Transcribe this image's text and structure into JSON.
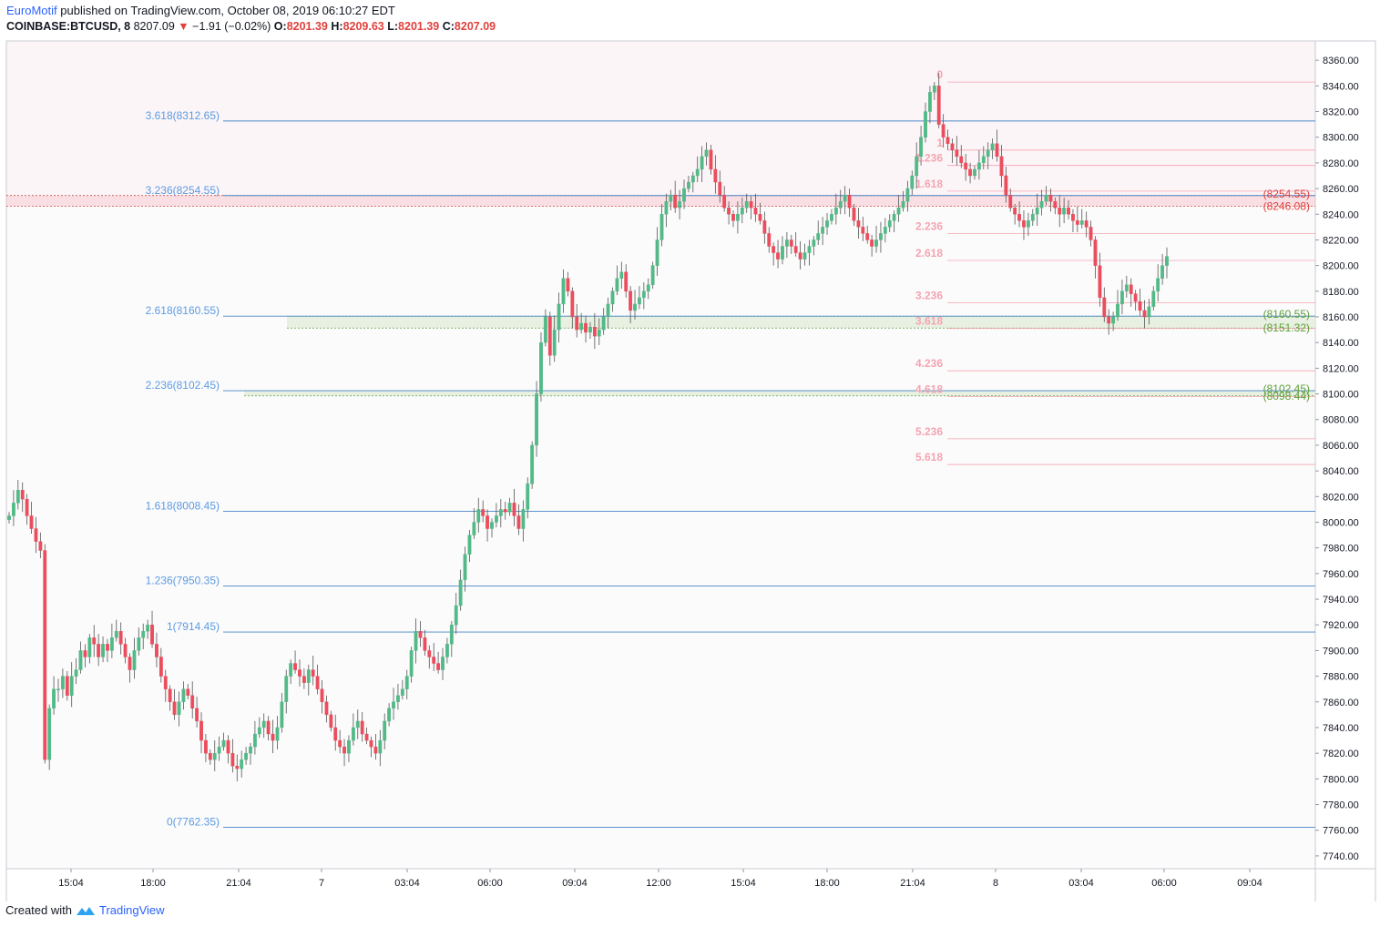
{
  "header": {
    "author": "EuroMotif",
    "published_text": "published on TradingView.com, October 08, 2019 06:10:27 EDT",
    "symbol": "COINBASE:BTCUSD, 8",
    "last_price": "8207.09",
    "change_arrow": "▼",
    "change": "−1.91 (−0.02%)",
    "open_label": "O:",
    "open": "8201.39",
    "high_label": "H:",
    "high": "8209.63",
    "low_label": "L:",
    "low": "8201.39",
    "close_label": "C:",
    "close": "8207.09"
  },
  "footer": {
    "created_with": "Created with",
    "brand": "TradingView",
    "logo_icon": "tradingview-logo-icon"
  },
  "colors": {
    "up": "#53b987",
    "down": "#eb4d5c",
    "fib_blue": "#4a86c8",
    "fib_label_blue": "#5d9be0",
    "fib_pink": "#f5a4b0",
    "zone_red": "#f7c8d0",
    "zone_green": "#e4eedb",
    "label_red": "#e0413c",
    "label_green": "#5e9e38"
  },
  "chart_data": {
    "type": "candlestick",
    "symbol": "COINBASE:BTCUSD",
    "timeframe": "8",
    "ylim": [
      7730,
      8375
    ],
    "y_ticks": [
      "8360.00",
      "8340.00",
      "8320.00",
      "8300.00",
      "8280.00",
      "8260.00",
      "8240.00",
      "8220.00",
      "8200.00",
      "8180.00",
      "8160.00",
      "8140.00",
      "8120.00",
      "8100.00",
      "8080.00",
      "8060.00",
      "8040.00",
      "8020.00",
      "8000.00",
      "7980.00",
      "7960.00",
      "7940.00",
      "7920.00",
      "7900.00",
      "7880.00",
      "7860.00",
      "7840.00",
      "7820.00",
      "7800.00",
      "7780.00",
      "7760.00",
      "7740.00"
    ],
    "x_ticks": [
      "15:04",
      "18:00",
      "21:04",
      "7",
      "03:04",
      "06:00",
      "09:04",
      "12:00",
      "15:04",
      "18:00",
      "21:04",
      "8",
      "03:04",
      "06:00",
      "09:04"
    ],
    "fib_extension_blue": [
      {
        "label": "3.618(8312.65)",
        "price": 8312.65
      },
      {
        "label": "3.236(8254.55)",
        "price": 8254.55
      },
      {
        "label": "2.618(8160.55)",
        "price": 8160.55
      },
      {
        "label": "2.236(8102.45)",
        "price": 8102.45
      },
      {
        "label": "1.618(8008.45)",
        "price": 8008.45
      },
      {
        "label": "1.236(7950.35)",
        "price": 7950.35
      },
      {
        "label": "1(7914.45)",
        "price": 7914.45
      },
      {
        "label": "0(7762.35)",
        "price": 7762.35
      }
    ],
    "fib_extension_pink": [
      {
        "label": "0",
        "price": 8343
      },
      {
        "label": "1",
        "price": 8290
      },
      {
        "label": "1.236",
        "price": 8278
      },
      {
        "label": "1.618",
        "price": 8258
      },
      {
        "label": "2.236",
        "price": 8225
      },
      {
        "label": "2.618",
        "price": 8204
      },
      {
        "label": "3.236",
        "price": 8171
      },
      {
        "label": "3.618",
        "price": 8151
      },
      {
        "label": "4.236",
        "price": 8118
      },
      {
        "label": "4.618",
        "price": 8098
      },
      {
        "label": "5.236",
        "price": 8065
      },
      {
        "label": "5.618",
        "price": 8045
      }
    ],
    "zones": [
      {
        "top_label": "(8254.55)",
        "bottom_label": "(8246.08)",
        "top": 8254.55,
        "bottom": 8246.08,
        "color": "red"
      },
      {
        "top_label": "(8160.55)",
        "bottom_label": "(8151.32)",
        "top": 8160.55,
        "bottom": 8151.32,
        "color": "green"
      },
      {
        "top_label": "(8102.45)",
        "bottom_label": "(8098.44)",
        "top": 8102.45,
        "bottom": 8098.44,
        "color": "green"
      }
    ],
    "close_series": [
      8005,
      8015,
      8025,
      8018,
      8005,
      7995,
      7985,
      7978,
      7815,
      7855,
      7870,
      7870,
      7880,
      7865,
      7880,
      7885,
      7900,
      7895,
      7910,
      7905,
      7895,
      7905,
      7900,
      7910,
      7915,
      7905,
      7895,
      7885,
      7900,
      7910,
      7915,
      7920,
      7905,
      7895,
      7880,
      7870,
      7860,
      7850,
      7860,
      7870,
      7865,
      7855,
      7845,
      7830,
      7820,
      7815,
      7820,
      7825,
      7830,
      7820,
      7810,
      7808,
      7815,
      7820,
      7825,
      7835,
      7840,
      7845,
      7835,
      7830,
      7840,
      7860,
      7880,
      7890,
      7885,
      7880,
      7875,
      7885,
      7880,
      7870,
      7860,
      7850,
      7840,
      7830,
      7825,
      7820,
      7830,
      7840,
      7845,
      7835,
      7830,
      7825,
      7820,
      7830,
      7845,
      7855,
      7860,
      7865,
      7870,
      7880,
      7900,
      7915,
      7910,
      7900,
      7895,
      7890,
      7885,
      7895,
      7905,
      7920,
      7935,
      7955,
      7975,
      7990,
      8000,
      8010,
      8005,
      7995,
      8000,
      8005,
      8010,
      8008,
      8015,
      8005,
      7995,
      8010,
      8030,
      8060,
      8100,
      8140,
      8160,
      8130,
      8150,
      8170,
      8190,
      8180,
      8160,
      8150,
      8155,
      8148,
      8152,
      8145,
      8150,
      8160,
      8170,
      8180,
      8190,
      8195,
      8180,
      8165,
      8170,
      8175,
      8180,
      8185,
      8200,
      8220,
      8240,
      8250,
      8255,
      8245,
      8250,
      8260,
      8265,
      8270,
      8275,
      8285,
      8290,
      8275,
      8265,
      8255,
      8245,
      8240,
      8235,
      8240,
      8245,
      8250,
      8245,
      8240,
      8235,
      8225,
      8215,
      8210,
      8205,
      8215,
      8220,
      8215,
      8210,
      8205,
      8210,
      8215,
      8220,
      8225,
      8230,
      8235,
      8240,
      8245,
      8250,
      8255,
      8245,
      8235,
      8230,
      8225,
      8220,
      8215,
      8220,
      8225,
      8230,
      8235,
      8240,
      8245,
      8250,
      8260,
      8270,
      8285,
      8300,
      8320,
      8335,
      8340,
      8310,
      8300,
      8295,
      8290,
      8285,
      8280,
      8275,
      8270,
      8275,
      8280,
      8285,
      8290,
      8295,
      8285,
      8270,
      8255,
      8245,
      8240,
      8235,
      8230,
      8235,
      8240,
      8245,
      8250,
      8255,
      8250,
      8245,
      8240,
      8245,
      8240,
      8235,
      8232,
      8235,
      8230,
      8220,
      8200,
      8175,
      8160,
      8155,
      8160,
      8170,
      8180,
      8185,
      8178,
      8172,
      8165,
      8160,
      8168,
      8180,
      8190,
      8200,
      8207.09
    ]
  }
}
